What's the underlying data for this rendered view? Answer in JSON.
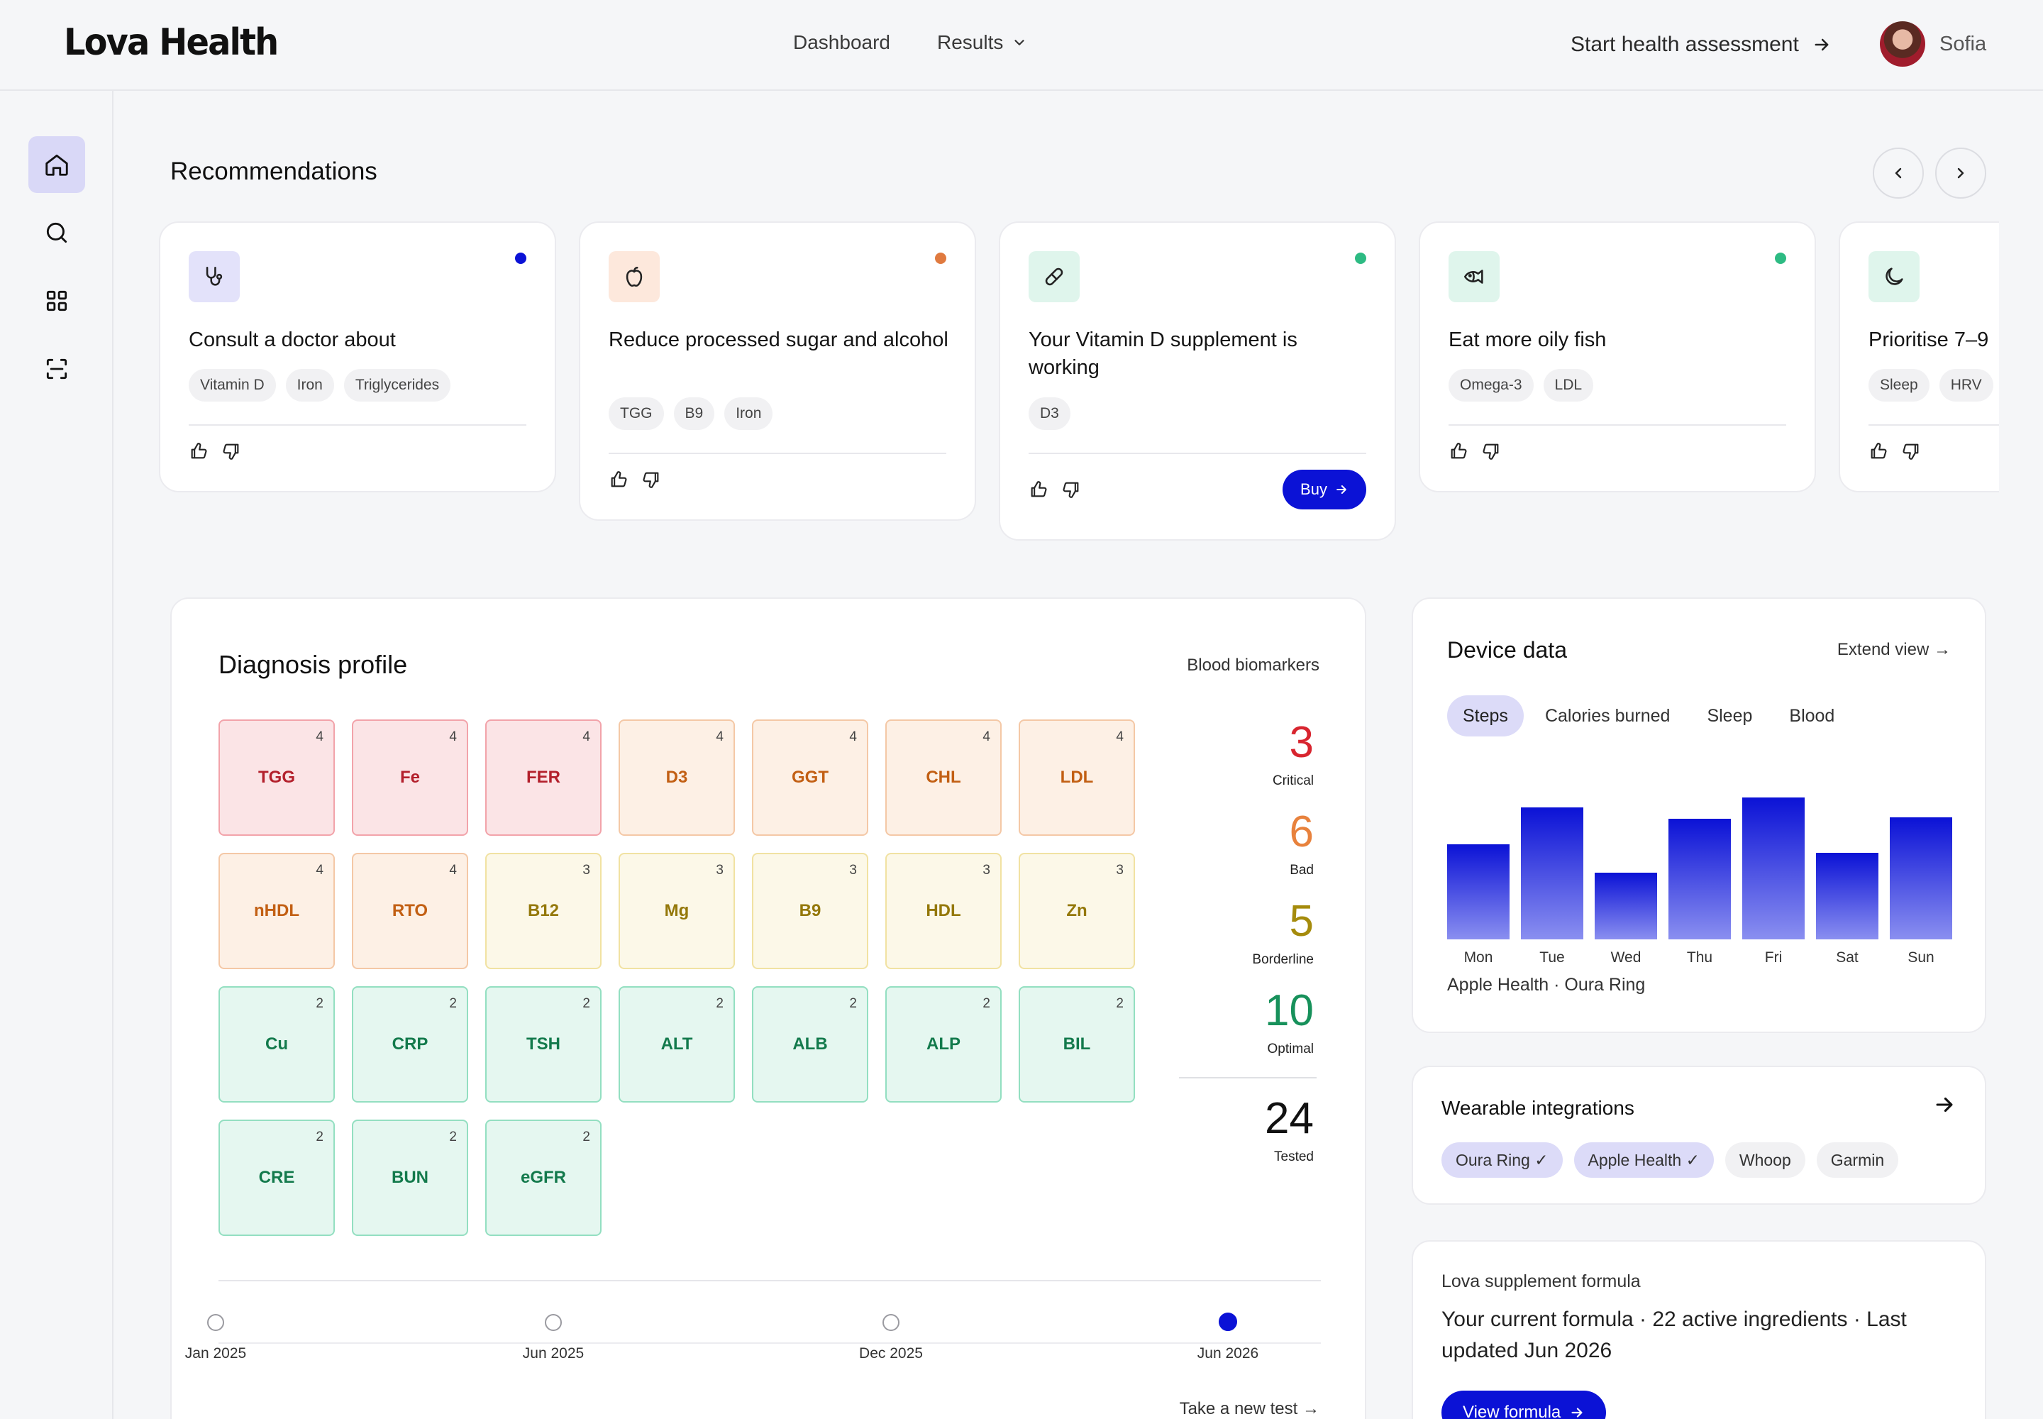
{
  "header": {
    "logo": "Lova Health",
    "nav": [
      {
        "label": "Dashboard"
      },
      {
        "label": "Results"
      }
    ],
    "start_label": "Start health assessment",
    "user_name": "Sofia"
  },
  "sidebar": {
    "items": [
      {
        "icon": "home-icon",
        "active": true
      },
      {
        "icon": "search-icon",
        "active": false
      },
      {
        "icon": "grid-icon",
        "active": false
      },
      {
        "icon": "scan-icon",
        "active": false
      }
    ]
  },
  "recommendations": {
    "title": "Recommendations",
    "cards": [
      {
        "icon": "stethoscope-icon",
        "dot_color": "#0b12d6",
        "text": "Consult a doctor about",
        "tags": [
          "Vitamin D",
          "Iron",
          "Triglycerides"
        ]
      },
      {
        "icon": "apple-icon",
        "dot_color": "#e07a3f",
        "text": "Reduce processed sugar and alcohol",
        "tags": [
          "TGG",
          "B9",
          "Iron"
        ]
      },
      {
        "icon": "pill-icon",
        "dot_color": "#2dbb83",
        "text": "Your Vitamin D supplement is working",
        "tags": [
          "D3"
        ],
        "button": "Buy"
      },
      {
        "icon": "fish-icon",
        "dot_color": "#2dbb83",
        "text": "Eat more oily fish",
        "tags": [
          "Omega-3",
          "LDL"
        ]
      },
      {
        "icon": "moon-icon",
        "dot_color": "#2dbb83",
        "text": "Prioritise 7–9",
        "tags": [
          "Sleep",
          "HRV"
        ]
      }
    ]
  },
  "diagnosis": {
    "title": "Diagnosis profile",
    "subtitle": "Blood biomarkers",
    "tiles": [
      {
        "code": "TGG",
        "count": "4",
        "status": "critical"
      },
      {
        "code": "Fe",
        "count": "4",
        "status": "critical"
      },
      {
        "code": "FER",
        "count": "4",
        "status": "critical"
      },
      {
        "code": "D3",
        "count": "4",
        "status": "bad"
      },
      {
        "code": "GGT",
        "count": "4",
        "status": "bad"
      },
      {
        "code": "CHL",
        "count": "4",
        "status": "bad"
      },
      {
        "code": "LDL",
        "count": "4",
        "status": "bad"
      },
      {
        "code": "nHDL",
        "count": "4",
        "status": "bad"
      },
      {
        "code": "RTO",
        "count": "4",
        "status": "bad"
      },
      {
        "code": "B12",
        "count": "3",
        "status": "borderline"
      },
      {
        "code": "Mg",
        "count": "3",
        "status": "borderline"
      },
      {
        "code": "B9",
        "count": "3",
        "status": "borderline"
      },
      {
        "code": "HDL",
        "count": "3",
        "status": "borderline"
      },
      {
        "code": "Zn",
        "count": "3",
        "status": "borderline"
      },
      {
        "code": "Cu",
        "count": "2",
        "status": "optimal"
      },
      {
        "code": "CRP",
        "count": "2",
        "status": "optimal"
      },
      {
        "code": "TSH",
        "count": "2",
        "status": "optimal"
      },
      {
        "code": "ALT",
        "count": "2",
        "status": "optimal"
      },
      {
        "code": "ALB",
        "count": "2",
        "status": "optimal"
      },
      {
        "code": "ALP",
        "count": "2",
        "status": "optimal"
      },
      {
        "code": "BIL",
        "count": "2",
        "status": "optimal"
      },
      {
        "code": "CRE",
        "count": "2",
        "status": "optimal"
      },
      {
        "code": "BUN",
        "count": "2",
        "status": "optimal"
      },
      {
        "code": "eGFR",
        "count": "2",
        "status": "optimal"
      }
    ],
    "stats": [
      {
        "value": "3",
        "label": "Critical",
        "color": "#d8252f"
      },
      {
        "value": "6",
        "label": "Bad",
        "color": "#e8823d"
      },
      {
        "value": "5",
        "label": "Borderline",
        "color": "#a58b0c"
      },
      {
        "value": "10",
        "label": "Optimal",
        "color": "#17915b"
      }
    ],
    "tested": {
      "value": "24",
      "label": "Tested"
    },
    "timeline": [
      {
        "label": "Jan 2025",
        "active": false
      },
      {
        "label": "Jun 2025",
        "active": false
      },
      {
        "label": "Dec 2025",
        "active": false
      },
      {
        "label": "Jun 2026",
        "active": true
      }
    ],
    "new_test": "Take a new test →"
  },
  "device": {
    "title": "Device data",
    "extend": "Extend view →",
    "tabs": [
      {
        "label": "Steps",
        "active": true
      },
      {
        "label": "Calories burned",
        "active": false
      },
      {
        "label": "Sleep",
        "active": false
      },
      {
        "label": "Blood",
        "active": false
      }
    ],
    "source": "Apple Health · Oura Ring"
  },
  "chart_data": {
    "type": "bar",
    "categories": [
      "Mon",
      "Tue",
      "Wed",
      "Thu",
      "Fri",
      "Sat",
      "Sun"
    ],
    "values": [
      0.67,
      0.93,
      0.47,
      0.85,
      1.0,
      0.61,
      0.86
    ]
  },
  "wearables": {
    "title": "Wearable integrations",
    "chips": [
      {
        "label": "Oura Ring ✓",
        "active": true
      },
      {
        "label": "Apple Health ✓",
        "active": true
      },
      {
        "label": "Whoop",
        "active": false
      },
      {
        "label": "Garmin",
        "active": false
      }
    ]
  },
  "supplement": {
    "label": "Lova supplement formula",
    "text": "Your current formula · 22 active ingredients · Last updated Jun 2026",
    "button": "View formula"
  }
}
